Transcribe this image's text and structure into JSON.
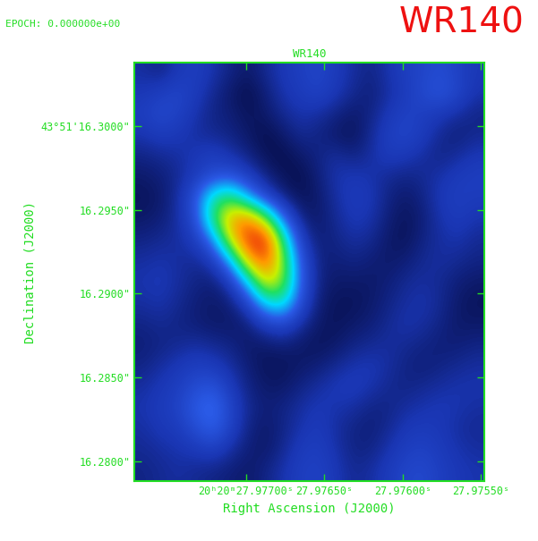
{
  "chart_data": {
    "type": "heatmap",
    "title": "WR140",
    "annotations": [
      "EPOCH: 0.000000e+00",
      "WR140"
    ],
    "xlabel": "Right Ascension (J2000)",
    "ylabel": "Declination (J2000)",
    "x": [
      27.977655,
      27.977544,
      27.977432,
      27.977321,
      27.977209,
      27.977098,
      27.976986,
      27.976875,
      27.976763,
      27.976652,
      27.97654,
      27.976429,
      27.976317,
      27.976206,
      27.976094,
      27.975983,
      27.975871,
      27.97576,
      27.975648,
      27.975537
    ],
    "y": [
      16.30317,
      16.30192,
      16.30067,
      16.29942,
      16.29817,
      16.29692,
      16.29567,
      16.29442,
      16.29317,
      16.29192,
      16.29066,
      16.28941,
      16.28816,
      16.28691,
      16.28566,
      16.28441,
      16.28316,
      16.28191,
      16.28066,
      16.27941
    ],
    "cells": [
      [
        0.14,
        0.12,
        0.16,
        0.18,
        0.15,
        0.12,
        0.1,
        0.13,
        0.16,
        0.18,
        0.2,
        0.17,
        0.14,
        0.12,
        0.15,
        0.18,
        0.2,
        0.22,
        0.19,
        0.16
      ],
      [
        0.16,
        0.18,
        0.2,
        0.17,
        0.13,
        0.1,
        0.08,
        0.11,
        0.15,
        0.17,
        0.19,
        0.16,
        0.13,
        0.11,
        0.14,
        0.17,
        0.21,
        0.24,
        0.2,
        0.15
      ],
      [
        0.18,
        0.21,
        0.19,
        0.15,
        0.12,
        0.11,
        0.09,
        0.1,
        0.13,
        0.15,
        0.14,
        0.12,
        0.1,
        0.12,
        0.16,
        0.19,
        0.18,
        0.16,
        0.14,
        0.12
      ],
      [
        0.15,
        0.17,
        0.16,
        0.14,
        0.13,
        0.12,
        0.1,
        0.08,
        0.1,
        0.13,
        0.12,
        0.1,
        0.09,
        0.13,
        0.18,
        0.2,
        0.17,
        0.13,
        0.11,
        0.13
      ],
      [
        0.12,
        0.13,
        0.14,
        0.16,
        0.18,
        0.15,
        0.12,
        0.09,
        0.08,
        0.1,
        0.12,
        0.14,
        0.12,
        0.14,
        0.17,
        0.16,
        0.14,
        0.12,
        0.14,
        0.16
      ],
      [
        0.1,
        0.11,
        0.13,
        0.17,
        0.22,
        0.24,
        0.18,
        0.12,
        0.09,
        0.08,
        0.11,
        0.15,
        0.16,
        0.15,
        0.13,
        0.12,
        0.13,
        0.15,
        0.17,
        0.18
      ],
      [
        0.09,
        0.1,
        0.14,
        0.24,
        0.48,
        0.55,
        0.36,
        0.2,
        0.12,
        0.09,
        0.1,
        0.14,
        0.17,
        0.16,
        0.12,
        0.1,
        0.12,
        0.16,
        0.18,
        0.17
      ],
      [
        0.1,
        0.11,
        0.14,
        0.22,
        0.52,
        0.8,
        0.86,
        0.62,
        0.28,
        0.12,
        0.1,
        0.13,
        0.16,
        0.15,
        0.11,
        0.09,
        0.11,
        0.15,
        0.17,
        0.15
      ],
      [
        0.12,
        0.13,
        0.14,
        0.17,
        0.3,
        0.68,
        0.97,
        1.0,
        0.52,
        0.18,
        0.11,
        0.12,
        0.14,
        0.13,
        0.1,
        0.09,
        0.12,
        0.14,
        0.15,
        0.13
      ],
      [
        0.14,
        0.15,
        0.14,
        0.13,
        0.16,
        0.34,
        0.74,
        0.92,
        0.62,
        0.24,
        0.12,
        0.11,
        0.12,
        0.11,
        0.1,
        0.11,
        0.13,
        0.14,
        0.13,
        0.12
      ],
      [
        0.15,
        0.16,
        0.14,
        0.12,
        0.11,
        0.16,
        0.38,
        0.72,
        0.62,
        0.26,
        0.12,
        0.1,
        0.1,
        0.1,
        0.11,
        0.13,
        0.14,
        0.13,
        0.11,
        0.1
      ],
      [
        0.14,
        0.15,
        0.13,
        0.11,
        0.1,
        0.11,
        0.18,
        0.4,
        0.46,
        0.22,
        0.11,
        0.09,
        0.09,
        0.1,
        0.12,
        0.14,
        0.15,
        0.13,
        0.1,
        0.09
      ],
      [
        0.12,
        0.13,
        0.12,
        0.11,
        0.1,
        0.1,
        0.11,
        0.17,
        0.2,
        0.14,
        0.1,
        0.09,
        0.1,
        0.11,
        0.13,
        0.15,
        0.14,
        0.12,
        0.1,
        0.1
      ],
      [
        0.11,
        0.12,
        0.13,
        0.14,
        0.13,
        0.12,
        0.1,
        0.1,
        0.11,
        0.1,
        0.09,
        0.1,
        0.12,
        0.13,
        0.14,
        0.13,
        0.12,
        0.11,
        0.11,
        0.12
      ],
      [
        0.12,
        0.14,
        0.16,
        0.18,
        0.17,
        0.14,
        0.11,
        0.09,
        0.09,
        0.1,
        0.11,
        0.13,
        0.15,
        0.16,
        0.14,
        0.12,
        0.11,
        0.12,
        0.13,
        0.14
      ],
      [
        0.14,
        0.16,
        0.18,
        0.22,
        0.24,
        0.17,
        0.12,
        0.1,
        0.1,
        0.12,
        0.14,
        0.16,
        0.17,
        0.15,
        0.13,
        0.12,
        0.13,
        0.14,
        0.15,
        0.15
      ],
      [
        0.15,
        0.17,
        0.19,
        0.26,
        0.3,
        0.2,
        0.13,
        0.11,
        0.12,
        0.14,
        0.16,
        0.15,
        0.14,
        0.12,
        0.12,
        0.14,
        0.15,
        0.16,
        0.15,
        0.14
      ],
      [
        0.14,
        0.16,
        0.17,
        0.22,
        0.27,
        0.19,
        0.12,
        0.1,
        0.12,
        0.15,
        0.17,
        0.14,
        0.12,
        0.11,
        0.13,
        0.16,
        0.17,
        0.16,
        0.14,
        0.13
      ],
      [
        0.13,
        0.14,
        0.15,
        0.16,
        0.18,
        0.14,
        0.11,
        0.1,
        0.13,
        0.17,
        0.18,
        0.15,
        0.12,
        0.12,
        0.15,
        0.18,
        0.19,
        0.17,
        0.15,
        0.14
      ],
      [
        0.12,
        0.13,
        0.14,
        0.13,
        0.12,
        0.11,
        0.1,
        0.12,
        0.15,
        0.18,
        0.19,
        0.16,
        0.13,
        0.14,
        0.17,
        0.2,
        0.21,
        0.18,
        0.16,
        0.15
      ]
    ],
    "xlim": [
      27.97771,
      27.97548
    ],
    "ylim": [
      16.2788,
      16.3038
    ],
    "xticks": [
      {
        "value": 27.977,
        "label": "20ʰ20ᵐ27.97700ˢ"
      },
      {
        "value": 27.9765,
        "label": "27.97650ˢ"
      },
      {
        "value": 27.976,
        "label": "27.97600ˢ"
      },
      {
        "value": 27.9755,
        "label": "27.97550ˢ"
      }
    ],
    "yticks": [
      {
        "value": 16.3,
        "label": "43°51'16.3000\""
      },
      {
        "value": 16.295,
        "label": "16.2950\""
      },
      {
        "value": 16.29,
        "label": "16.2900\""
      },
      {
        "value": 16.285,
        "label": "16.2850\""
      },
      {
        "value": 16.28,
        "label": "16.2800\""
      }
    ]
  }
}
